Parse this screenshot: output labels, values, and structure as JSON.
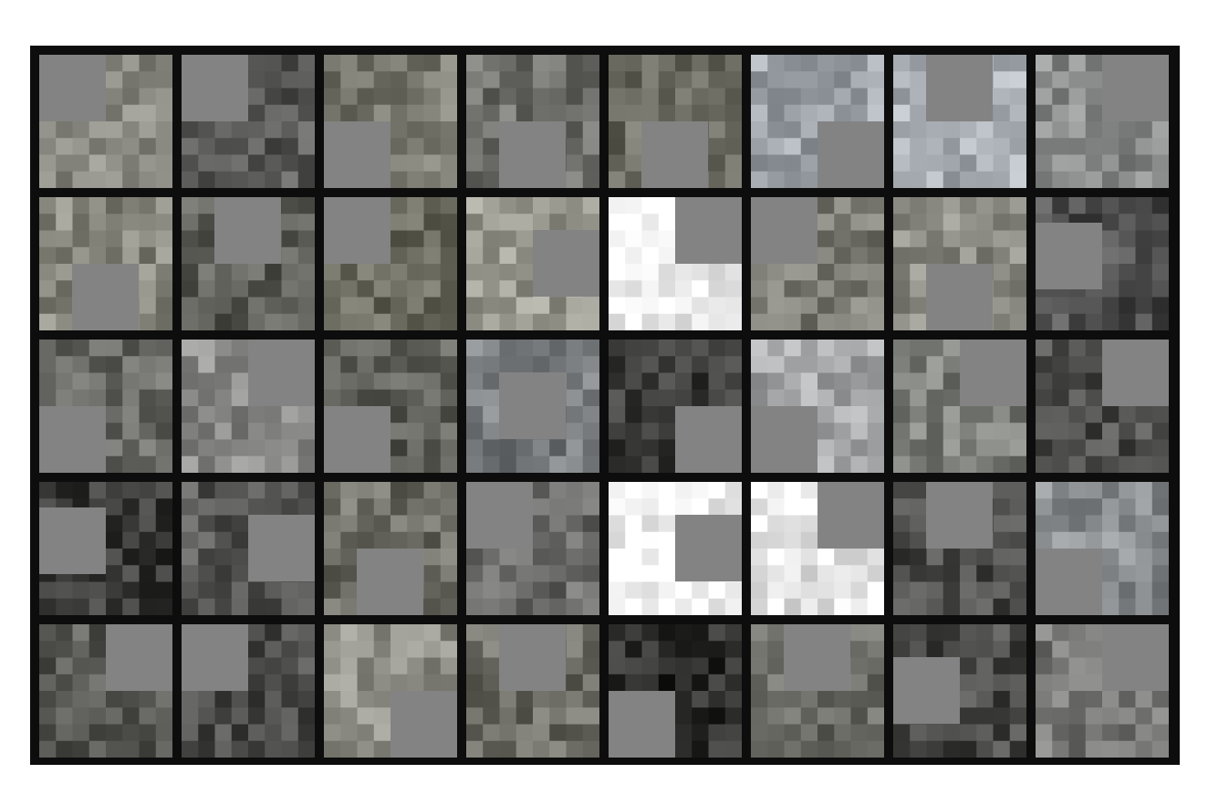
{
  "image": {
    "description_free": true,
    "rows": 5,
    "columns": 8,
    "mask_color": "#838383",
    "grid_background": "#0d0d0d",
    "tiles": [
      {
        "tone": "#8c8c84",
        "mask": "tl"
      },
      {
        "tone": "#5a5a58",
        "mask": "tl"
      },
      {
        "tone": "#7a7a70",
        "mask": "bl"
      },
      {
        "tone": "#6e6e6a",
        "mask": "bc"
      },
      {
        "tone": "#6a6a60",
        "mask": "bc"
      },
      {
        "tone": "#9ea4aa",
        "mask": "br"
      },
      {
        "tone": "#a8aeb4",
        "mask": "tc"
      },
      {
        "tone": "#8a8c8c",
        "mask": "tr"
      },
      {
        "tone": "#88887e",
        "mask": "bc"
      },
      {
        "tone": "#5e5e58",
        "mask": "tc"
      },
      {
        "tone": "#6c6c60",
        "mask": "tl"
      },
      {
        "tone": "#9a9a90",
        "mask": "cr"
      },
      {
        "tone": "#f4f4f4",
        "mask": "tr"
      },
      {
        "tone": "#7a7a72",
        "mask": "tl"
      },
      {
        "tone": "#8c8c84",
        "mask": "bc"
      },
      {
        "tone": "#505050",
        "mask": "l"
      },
      {
        "tone": "#6a6a66",
        "mask": "bl"
      },
      {
        "tone": "#8a8a88",
        "mask": "tr"
      },
      {
        "tone": "#5e5e58",
        "mask": "bl"
      },
      {
        "tone": "#7a7e80",
        "mask": "cc"
      },
      {
        "tone": "#3c3c3a",
        "mask": "br"
      },
      {
        "tone": "#a4a6a8",
        "mask": "bl"
      },
      {
        "tone": "#7c7e7a",
        "mask": "tr"
      },
      {
        "tone": "#4e4e4c",
        "mask": "tr"
      },
      {
        "tone": "#3a3a38",
        "mask": "l"
      },
      {
        "tone": "#5a5a58",
        "mask": "cr"
      },
      {
        "tone": "#6e6e66",
        "mask": "bc"
      },
      {
        "tone": "#6a6a68",
        "mask": "tl"
      },
      {
        "tone": "#f6f6f6",
        "mask": "cr"
      },
      {
        "tone": "#e8e8e8",
        "mask": "tr"
      },
      {
        "tone": "#4a4a48",
        "mask": "tc"
      },
      {
        "tone": "#8a8e90",
        "mask": "bl"
      },
      {
        "tone": "#5a5a56",
        "mask": "tr"
      },
      {
        "tone": "#4e4e4c",
        "mask": "tl"
      },
      {
        "tone": "#909088",
        "mask": "br"
      },
      {
        "tone": "#6c6c64",
        "mask": "tc"
      },
      {
        "tone": "#2e2e2c",
        "mask": "bl"
      },
      {
        "tone": "#6a6a64",
        "mask": "tc"
      },
      {
        "tone": "#4a4a48",
        "mask": "cl"
      },
      {
        "tone": "#7a7a78",
        "mask": "tr"
      }
    ]
  }
}
